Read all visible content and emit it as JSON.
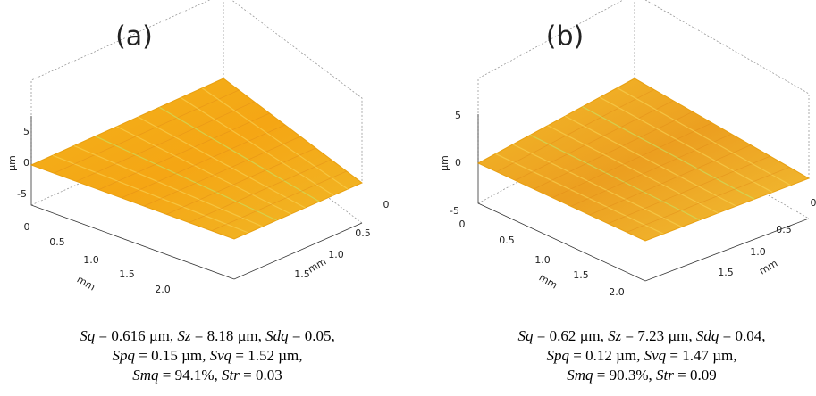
{
  "panels": [
    {
      "label": "(a)",
      "z_ticks": [
        "5",
        "0",
        "-5"
      ],
      "z_unit": "µm",
      "x_ticks": [
        "0",
        "0.5",
        "1.0",
        "1.5",
        "2.0"
      ],
      "x_unit": "mm",
      "y_ticks": [
        "0",
        "0.5",
        "1.0",
        "1.5"
      ],
      "y_unit": "mm",
      "caption": [
        [
          {
            "symbol": "Sq",
            "rest": " = 0.616 µm, "
          },
          {
            "symbol": "Sz",
            "rest": " = 8.18 µm, "
          },
          {
            "symbol": "Sdq",
            "rest": " = 0.05,"
          }
        ],
        [
          {
            "symbol": "Spq",
            "rest": " = 0.15 µm, "
          },
          {
            "symbol": "Svq",
            "rest": " = 1.52 µm,"
          }
        ],
        [
          {
            "symbol": "Smq",
            "rest": " = 94.1%, "
          },
          {
            "symbol": "Str",
            "rest": " = 0.03"
          }
        ]
      ]
    },
    {
      "label": "(b)",
      "z_ticks": [
        "5",
        "0",
        "-5"
      ],
      "z_unit": "µm",
      "x_ticks": [
        "0",
        "0.5",
        "1.0",
        "1.5",
        "2.0"
      ],
      "x_unit": "mm",
      "y_ticks": [
        "0",
        "0.5",
        "1.0",
        "1.5"
      ],
      "y_unit": "mm",
      "caption": [
        [
          {
            "symbol": "Sq",
            "rest": " = 0.62 µm, "
          },
          {
            "symbol": "Sz",
            "rest": " = 7.23 µm, "
          },
          {
            "symbol": "Sdq",
            "rest": " = 0.04,"
          }
        ],
        [
          {
            "symbol": "Spq",
            "rest": " = 0.12 µm, "
          },
          {
            "symbol": "Svq",
            "rest": " = 1.47 µm,"
          }
        ],
        [
          {
            "symbol": "Smq",
            "rest": " = 90.3%, "
          },
          {
            "symbol": "Str",
            "rest": " = 0.09"
          }
        ]
      ]
    }
  ]
}
